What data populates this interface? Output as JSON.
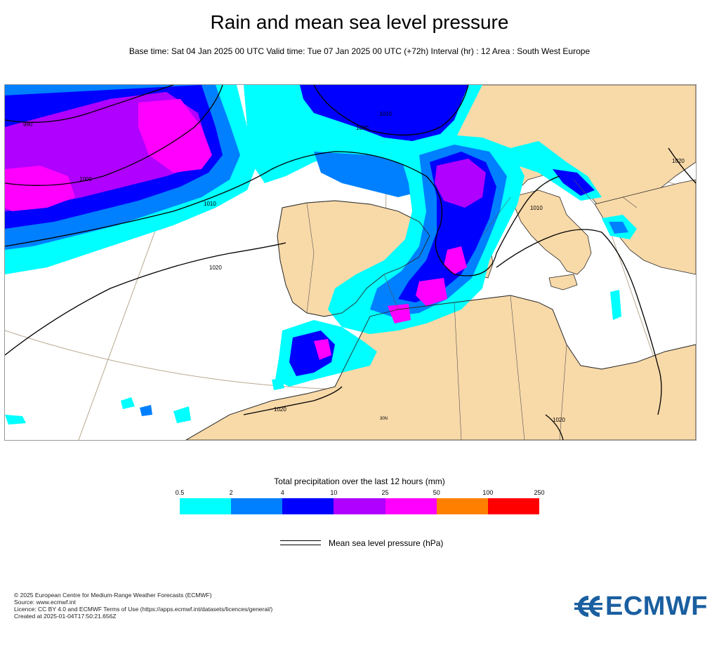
{
  "header": {
    "title": "Rain and mean sea level pressure",
    "subtitle": "Base time: Sat 04 Jan 2025 00 UTC Valid time: Tue 07 Jan 2025 00 UTC (+72h) Interval (hr) : 12 Area : South West Europe"
  },
  "map": {
    "isobar_labels": [
      "990",
      "1000",
      "1010",
      "1020",
      "1010",
      "1000",
      "1020",
      "1010",
      "1020",
      "1020"
    ],
    "graticule_label": "30N",
    "colors": {
      "land": "#f8d9a8",
      "sea": "#ffffff",
      "isobar": "#000000",
      "coastline": "#2a2a2a",
      "graticule": "#b8a890"
    }
  },
  "colorbar": {
    "title": "Total precipitation over the last 12 hours (mm)",
    "ticks": [
      "0.5",
      "2",
      "4",
      "10",
      "25",
      "50",
      "100",
      "250"
    ],
    "colors": [
      "#00ffff",
      "#0080ff",
      "#0000ff",
      "#b000ff",
      "#ff00ff",
      "#ff8000",
      "#ff0000"
    ]
  },
  "legend": {
    "isobar_label": "Mean sea level pressure (hPa)"
  },
  "footer": {
    "lines": [
      "© 2025 European Centre for Medium-Range Weather Forecasts (ECMWF)",
      "Source: www.ecmwf.int",
      "Licence: CC BY 4.0 and ECMWF Terms of Use (https://apps.ecmwf.int/datasets/licences/general/)",
      "Created at 2025-01-04T17:50:21.656Z"
    ]
  },
  "logo": {
    "text": "ECMWF",
    "color": "#1a5fa0",
    "icon": "ecmwf-logo-icon"
  }
}
